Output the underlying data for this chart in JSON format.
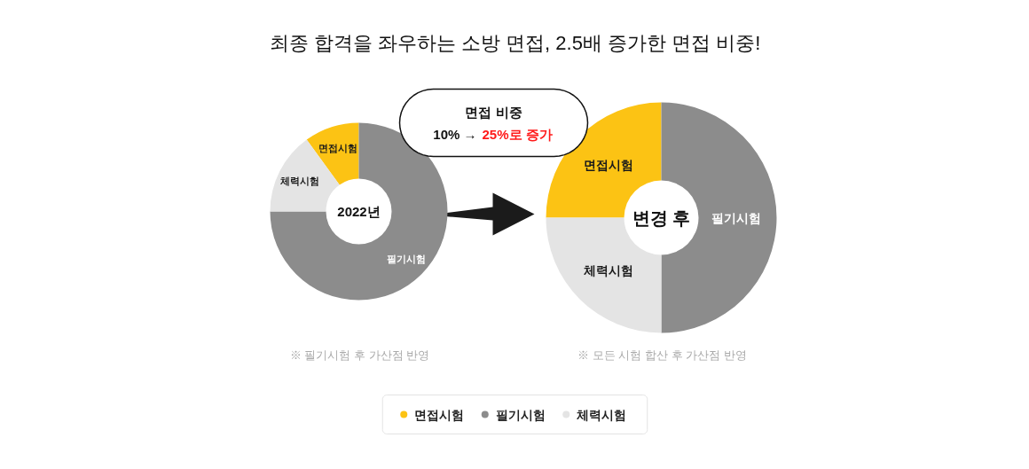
{
  "chart_data": [
    {
      "type": "donut",
      "title": "최종 합격을 좌우하는 소방 면접, 2.5배 증가한 면접 비중!",
      "categories": [
        "면접시험",
        "필기시험",
        "체력시험"
      ],
      "values": [
        10,
        75,
        15
      ],
      "colors": [
        "#fcc314",
        "#8c8c8c",
        "#e4e4e4"
      ],
      "annotations": [
        "2022년",
        "※ 필기시험 후 가산점 반영"
      ],
      "legend": "bottom"
    },
    {
      "type": "donut",
      "categories": [
        "면접시험",
        "필기시험",
        "체력시험"
      ],
      "values": [
        25,
        50,
        25
      ],
      "colors": [
        "#fcc314",
        "#8c8c8c",
        "#e4e4e4"
      ],
      "annotations": [
        "변경 후",
        "※ 모든 시험 합산 후 가산점 반영",
        "면접 비중",
        "10% →",
        "25%로 증가"
      ]
    }
  ]
}
